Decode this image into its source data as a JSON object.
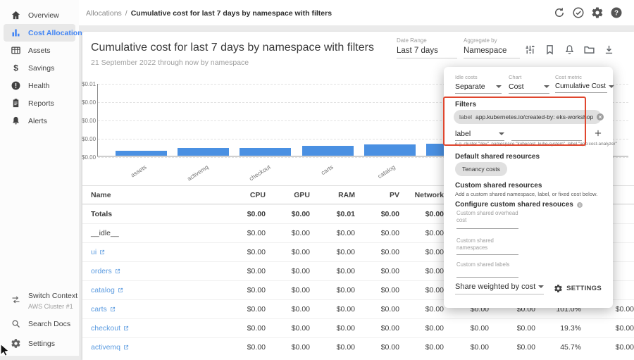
{
  "topbar": {
    "breadcrumb": {
      "section": "Allocations",
      "separator": "/",
      "page": "Cumulative cost for last 7 days by namespace with filters"
    },
    "icons": [
      "refresh-icon",
      "check-circle-icon",
      "gear-icon",
      "help-icon"
    ]
  },
  "sidebar": {
    "items": [
      {
        "label": "Overview",
        "icon": "home-icon",
        "active": false
      },
      {
        "label": "Cost Allocation",
        "icon": "bar-chart-icon",
        "active": true
      },
      {
        "label": "Assets",
        "icon": "grid-icon",
        "active": false
      },
      {
        "label": "Savings",
        "icon": "dollar-icon",
        "active": false
      },
      {
        "label": "Health",
        "icon": "exclamation-circle-icon",
        "active": false
      },
      {
        "label": "Reports",
        "icon": "clipboard-icon",
        "active": false
      },
      {
        "label": "Alerts",
        "icon": "bell-icon",
        "active": false
      }
    ],
    "footer": [
      {
        "label": "Switch Context",
        "sublabel": "AWS Cluster #1",
        "icon": "swap-arrows-icon"
      },
      {
        "label": "Search Docs",
        "sublabel": "",
        "icon": "search-icon"
      },
      {
        "label": "Settings",
        "sublabel": "",
        "icon": "gear-icon"
      }
    ]
  },
  "header": {
    "title": "Cumulative cost for last 7 days by namespace with filters",
    "subtitle": "21 September 2022 through now by namespace"
  },
  "controls": {
    "date_range": {
      "label": "Date Range",
      "value": "Last 7 days"
    },
    "aggregate_by": {
      "label": "Aggregate by",
      "value": "Namespace"
    },
    "icons": [
      "tune-icon",
      "bookmark-icon",
      "bell-outline-icon",
      "folder-icon",
      "download-icon"
    ]
  },
  "chart_data": {
    "type": "bar",
    "title": "Cumulative cost for last 7 days by namespace with filters",
    "categories": [
      "assets",
      "activemq",
      "checkout",
      "carts",
      "catalog",
      ""
    ],
    "values": [
      0.0007,
      0.0011,
      0.0011,
      0.0013,
      0.0015,
      0.0016
    ],
    "ytick_labels_top_to_bottom": [
      "$0.01",
      "$0.00",
      "$0.00",
      "$0.00",
      "$0.00"
    ],
    "ylim": [
      0,
      0.01
    ],
    "xlabel": "",
    "ylabel": "",
    "grid": true,
    "legend": "none",
    "bar_color": "#4a90e2"
  },
  "panel": {
    "idle_costs": {
      "label": "Idle costs",
      "value": "Separate"
    },
    "chart_select": {
      "label": "Chart",
      "value": "Cost"
    },
    "cost_metric": {
      "label": "Cost metric",
      "value": "Cumulative Cost"
    },
    "filters": {
      "title": "Filters",
      "chip": {
        "key": "label",
        "value": "app.kubernetes.io/created-by: eks-workshop"
      },
      "type_select": "label",
      "input_value": "",
      "helper": "e.g. cluster \"dev\", namespace \"kubecost, kube-system\", label \"app:cost-analyzer\""
    },
    "default_shared": {
      "title": "Default shared resources",
      "chip": "Tenancy costs"
    },
    "custom_shared": {
      "title": "Custom shared resources",
      "description": "Add a custom shared namespace, label, or fixed cost below."
    },
    "configure": {
      "title": "Configure custom shared resouces"
    },
    "fields": [
      {
        "label": "Custom shared overhead cost",
        "value": ""
      },
      {
        "label": "Custom shared namespaces",
        "value": ""
      },
      {
        "label": "Custom shared labels",
        "value": ""
      }
    ],
    "share_weighted": {
      "value": "Share weighted by cost"
    },
    "settings_button": "SETTINGS"
  },
  "table": {
    "headers": [
      "Name",
      "CPU",
      "GPU",
      "RAM",
      "PV",
      "Network",
      "",
      "",
      "",
      ""
    ],
    "rows": [
      {
        "name": "Totals",
        "link": false,
        "bold": true,
        "cells": [
          "$0.00",
          "$0.00",
          "$0.01",
          "$0.00",
          "$0.00",
          "",
          "",
          "",
          ""
        ]
      },
      {
        "name": "__idle__",
        "link": false,
        "bold": false,
        "cells": [
          "$0.00",
          "$0.00",
          "$0.00",
          "$0.00",
          "$0.00",
          "",
          "",
          "",
          ""
        ]
      },
      {
        "name": "ui",
        "link": true,
        "bold": false,
        "cells": [
          "$0.00",
          "$0.00",
          "$0.00",
          "$0.00",
          "$0.00",
          "",
          "",
          "",
          ""
        ]
      },
      {
        "name": "orders",
        "link": true,
        "bold": false,
        "cells": [
          "$0.00",
          "$0.00",
          "$0.00",
          "$0.00",
          "$0.00",
          "",
          "",
          "",
          ""
        ]
      },
      {
        "name": "catalog",
        "link": true,
        "bold": false,
        "cells": [
          "$0.00",
          "$0.00",
          "$0.00",
          "$0.00",
          "$0.00",
          "",
          "",
          "",
          ""
        ]
      },
      {
        "name": "carts",
        "link": true,
        "bold": false,
        "cells": [
          "$0.00",
          "$0.00",
          "$0.00",
          "$0.00",
          "$0.00",
          "$0.00",
          "$0.00",
          "101.0%",
          "$0.00"
        ]
      },
      {
        "name": "checkout",
        "link": true,
        "bold": false,
        "cells": [
          "$0.00",
          "$0.00",
          "$0.00",
          "$0.00",
          "$0.00",
          "$0.00",
          "$0.00",
          "19.3%",
          "$0.00"
        ]
      },
      {
        "name": "activemq",
        "link": true,
        "bold": false,
        "cells": [
          "$0.00",
          "$0.00",
          "$0.00",
          "$0.00",
          "$0.00",
          "$0.00",
          "$0.00",
          "45.7%",
          "$0.00"
        ]
      }
    ]
  }
}
